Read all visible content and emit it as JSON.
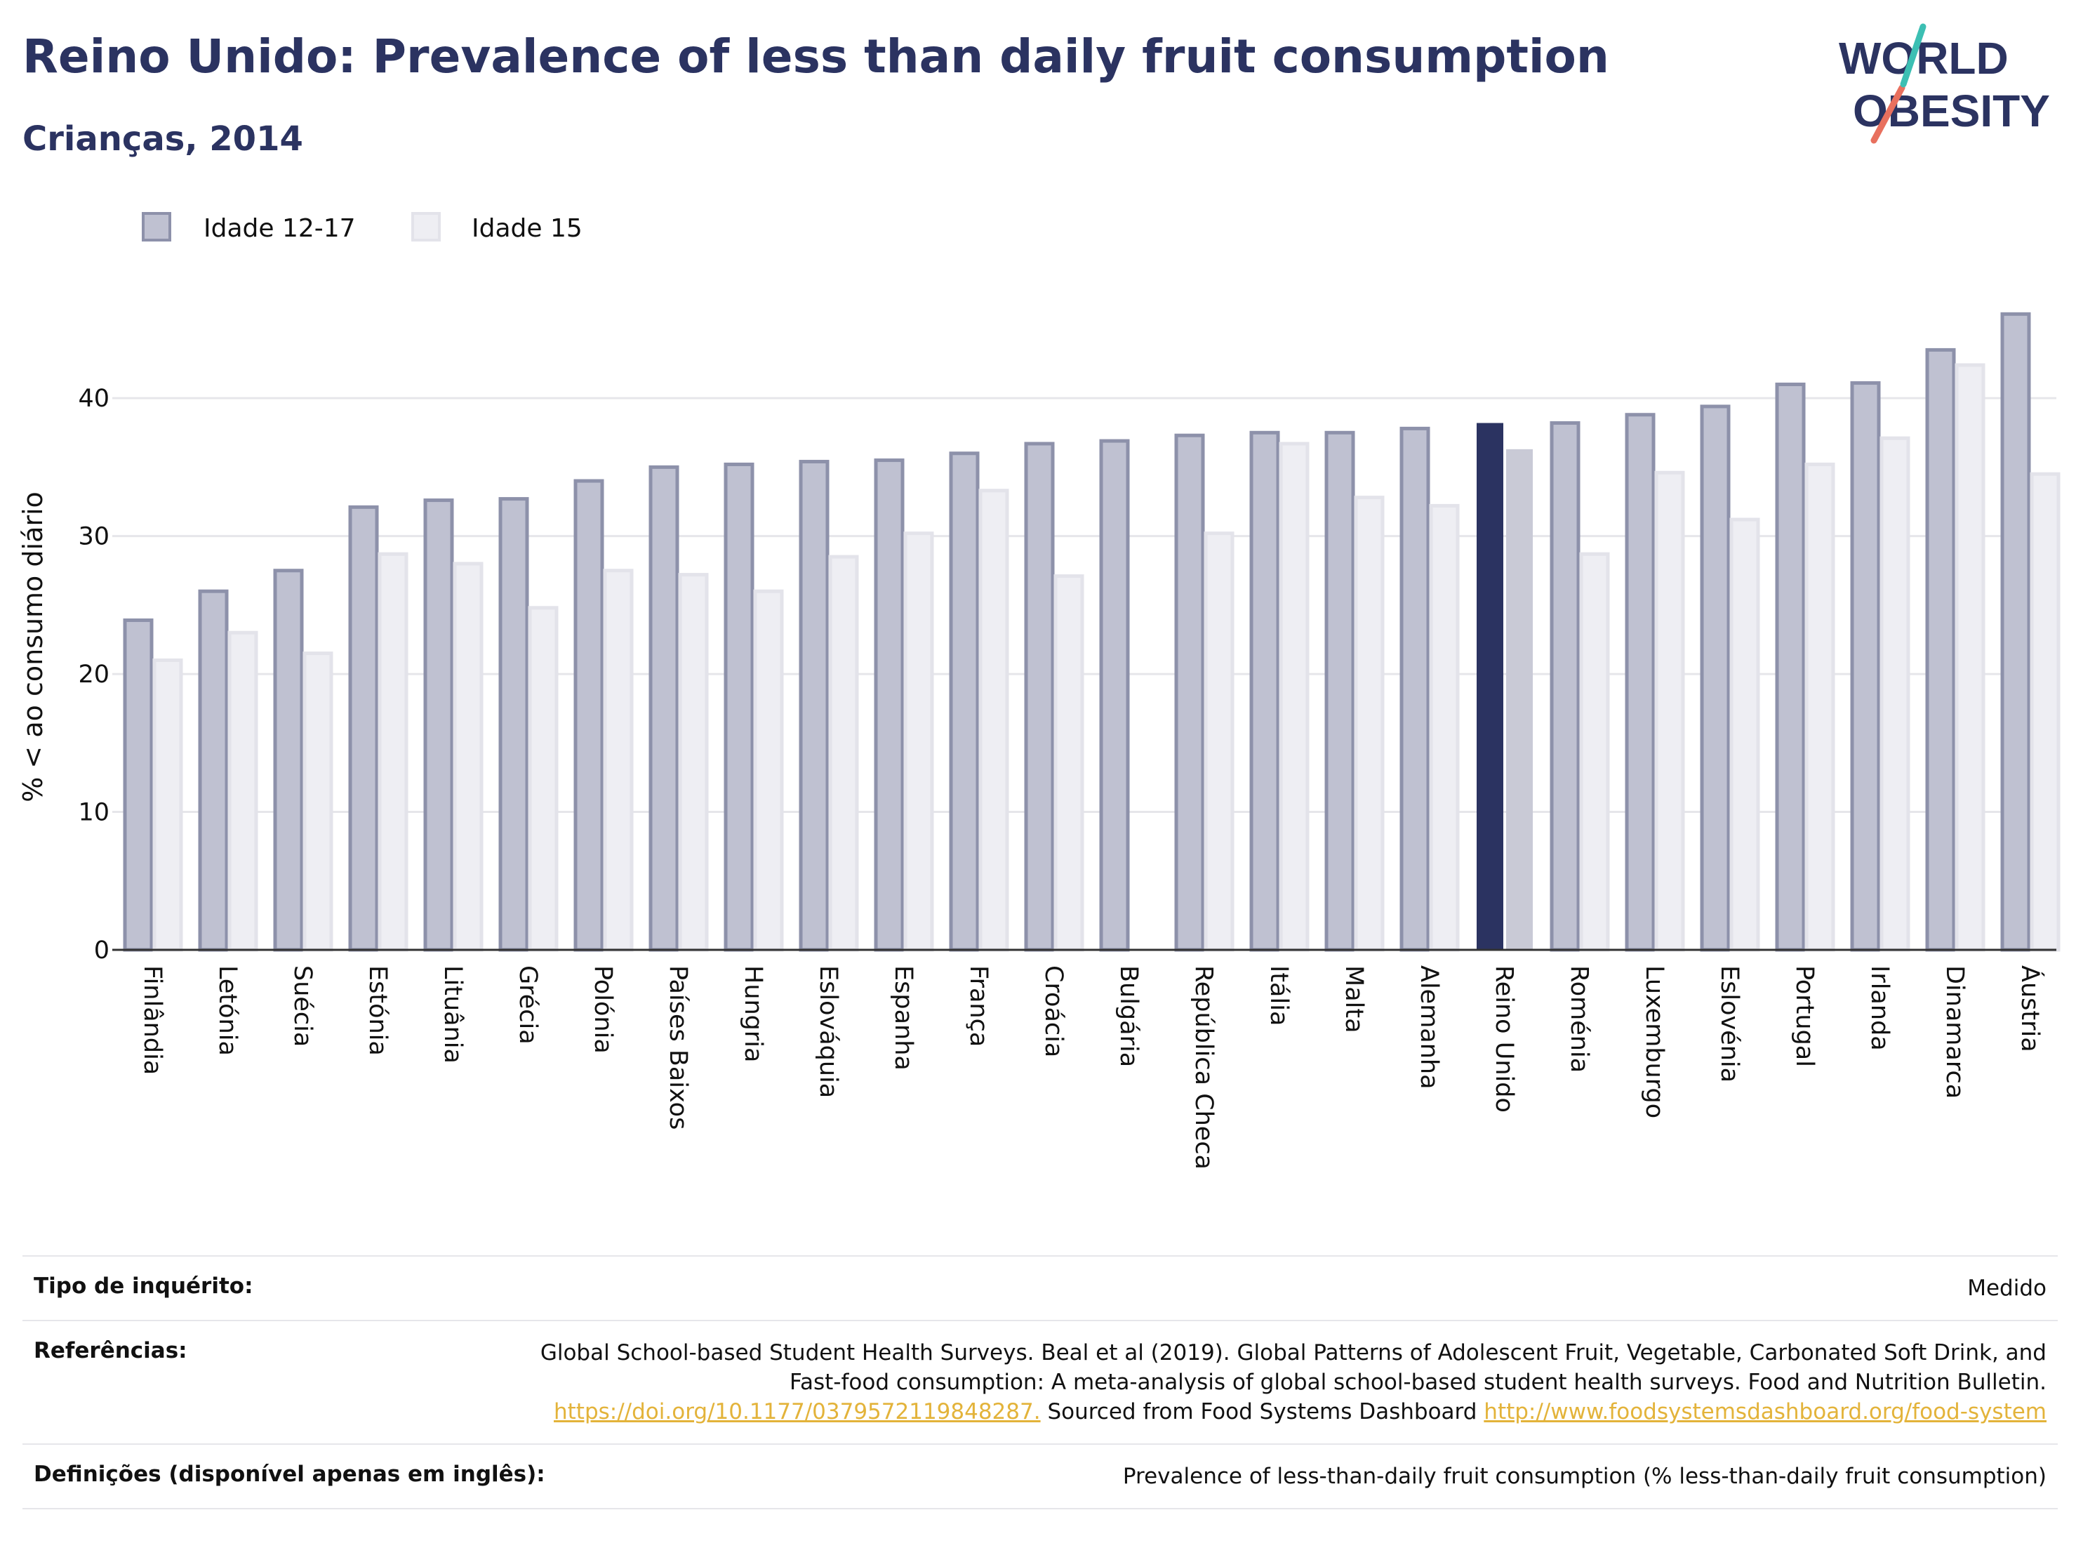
{
  "header": {
    "title": "Reino Unido: Prevalence of less than daily fruit consumption",
    "subtitle": "Crianças, 2014"
  },
  "logo": {
    "line1": "WORLD",
    "line2": "OBESITY"
  },
  "colors": {
    "series1_fill": "#bfc1d1",
    "series1_stroke": "#8d91aa",
    "series2_fill": "#eeeef3",
    "series2_stroke": "#e3e3ea",
    "highlight1": "#2b3361",
    "highlight2": "#c9cad6",
    "grid": "#e6e6ea",
    "title": "#2b3361",
    "link": "#e3b33a"
  },
  "chart_data": {
    "type": "bar",
    "title": "",
    "xlabel": "",
    "ylabel": "% < ao consumo diário",
    "ylim": [
      0,
      48
    ],
    "yticks": [
      0,
      10,
      20,
      30,
      40
    ],
    "grid": true,
    "legend_position": "top-left",
    "highlight_category": "Reino Unido",
    "categories": [
      "Finlândia",
      "Letónia",
      "Suécia",
      "Estónia",
      "Lituânia",
      "Grécia",
      "Polónia",
      "Países Baixos",
      "Hungria",
      "Eslováquia",
      "Espanha",
      "França",
      "Croácia",
      "Bulgária",
      "República Checa",
      "Itália",
      "Malta",
      "Alemanha",
      "Reino Unido",
      "Roménia",
      "Luxemburgo",
      "Eslovénia",
      "Portugal",
      "Irlanda",
      "Dinamarca",
      "Áustria"
    ],
    "series": [
      {
        "name": "Idade 12-17",
        "values": [
          23.9,
          26.0,
          27.5,
          32.1,
          32.6,
          32.7,
          34.0,
          35.0,
          35.2,
          35.4,
          35.5,
          36.0,
          36.7,
          36.9,
          37.3,
          37.5,
          37.5,
          37.8,
          38.2,
          38.2,
          38.8,
          39.4,
          41.0,
          41.1,
          43.5,
          46.1
        ]
      },
      {
        "name": "Idade 15",
        "values": [
          21.0,
          23.0,
          21.5,
          28.7,
          28.0,
          24.8,
          27.5,
          27.2,
          26.0,
          28.5,
          30.2,
          33.3,
          27.1,
          null,
          30.2,
          36.7,
          32.8,
          32.2,
          36.3,
          28.7,
          34.6,
          31.2,
          35.2,
          37.1,
          42.4,
          34.5
        ]
      }
    ]
  },
  "info": {
    "survey_label": "Tipo de inquérito:",
    "survey_value": "Medido",
    "references_label": "Referências:",
    "references_text": "Global School-based Student Health Surveys. Beal et al (2019). Global Patterns of Adolescent Fruit, Vegetable, Carbonated Soft Drink, and Fast-food consumption: A meta-analysis of global school-based student health surveys. Food and Nutrition Bulletin.",
    "references_link1": "https://doi.org/10.1177/0379572119848287.",
    "references_mid": "Sourced from Food Systems Dashboard",
    "references_link2": "http://www.foodsystemsdashboard.org/food-system",
    "definitions_label": "Definições (disponível apenas em inglês):",
    "definitions_value": "Prevalence of less-than-daily fruit consumption (% less-than-daily fruit consumption)"
  }
}
